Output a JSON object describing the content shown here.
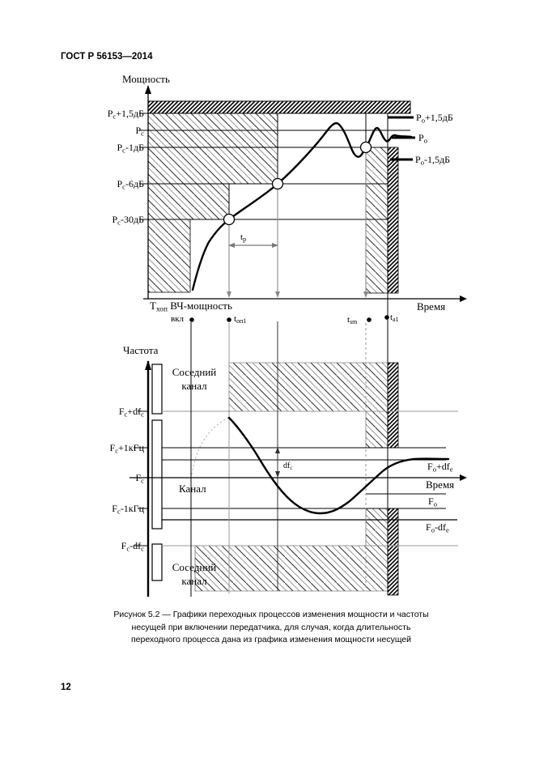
{
  "page": {
    "header": "ГОСТ Р 56153—2014",
    "page_number": "12",
    "caption_lines": [
      "Рисунок 5.2 — Графики переходных процессов изменения мощности и частоты",
      "несущей при включении передатчика, для случая, когда длительность",
      "переходного процесса дана из графика изменения мощности несущей"
    ]
  },
  "power": {
    "title": "Мощность",
    "time_label": "Время",
    "left_labels": [
      [
        {
          "t": "P"
        },
        {
          "t": "с",
          "s": true
        },
        {
          "t": "+1,5дБ"
        }
      ],
      [
        {
          "t": "P"
        },
        {
          "t": "с",
          "s": true
        }
      ],
      [
        {
          "t": "P"
        },
        {
          "t": "с",
          "s": true
        },
        {
          "t": "-1дБ"
        }
      ],
      [
        {
          "t": "P"
        },
        {
          "t": "с",
          "s": true
        },
        {
          "t": "-6дБ"
        }
      ],
      [
        {
          "t": "P"
        },
        {
          "t": "с",
          "s": true
        },
        {
          "t": "-30дБ"
        }
      ]
    ],
    "right_labels": [
      [
        {
          "t": "P"
        },
        {
          "t": "о",
          "s": true
        },
        {
          "t": "+1,5дБ"
        }
      ],
      [
        {
          "t": "P"
        },
        {
          "t": "о",
          "s": true
        }
      ],
      [
        {
          "t": "P"
        },
        {
          "t": "о",
          "s": true
        },
        {
          "t": "-1,5дБ"
        }
      ]
    ],
    "tp": [
      {
        "t": "t"
      },
      {
        "t": "р",
        "s": true
      }
    ],
    "thop": [
      {
        "t": "T"
      },
      {
        "t": "хоп",
        "s": true
      },
      {
        "t": " ВЧ-мощность"
      }
    ],
    "vkl": "вкл",
    "ton1": [
      {
        "t": "t"
      },
      {
        "t": "оп1",
        "s": true
      }
    ],
    "tsm": [
      {
        "t": "t"
      },
      {
        "t": "sm",
        "s": true
      }
    ],
    "ta1": [
      {
        "t": "t"
      },
      {
        "t": "а1",
        "s": true
      }
    ]
  },
  "freq": {
    "title": "Частота",
    "time_label": "Время",
    "left_labels": [
      [
        {
          "t": "F"
        },
        {
          "t": "с",
          "s": true
        },
        {
          "t": "+df"
        },
        {
          "t": "с",
          "s": true
        }
      ],
      [
        {
          "t": "F"
        },
        {
          "t": "с",
          "s": true
        },
        {
          "t": "+1кГц"
        }
      ],
      [
        {
          "t": "F"
        },
        {
          "t": "с",
          "s": true
        }
      ],
      [
        {
          "t": "F"
        },
        {
          "t": "с",
          "s": true
        },
        {
          "t": "-1кГц"
        }
      ],
      [
        {
          "t": "F"
        },
        {
          "t": "с",
          "s": true
        },
        {
          "t": "-df"
        },
        {
          "t": "с",
          "s": true
        }
      ]
    ],
    "right_fo_plus": [
      {
        "t": "F"
      },
      {
        "t": "о",
        "s": true
      },
      {
        "t": "+df"
      },
      {
        "t": "е",
        "s": true
      }
    ],
    "right_fo": [
      {
        "t": "F"
      },
      {
        "t": "о",
        "s": true
      }
    ],
    "right_fo_minus": [
      {
        "t": "F"
      },
      {
        "t": "о",
        "s": true
      },
      {
        "t": "-df"
      },
      {
        "t": "е",
        "s": true
      }
    ],
    "dfc": [
      {
        "t": "df"
      },
      {
        "t": "с",
        "s": true
      }
    ],
    "adjacent": [
      "Соседний",
      "канал"
    ],
    "channel": "Канал"
  },
  "colors": {
    "ink": "#000000",
    "gray_line": "#8a8a8a",
    "hatch_gray": "#999999"
  }
}
